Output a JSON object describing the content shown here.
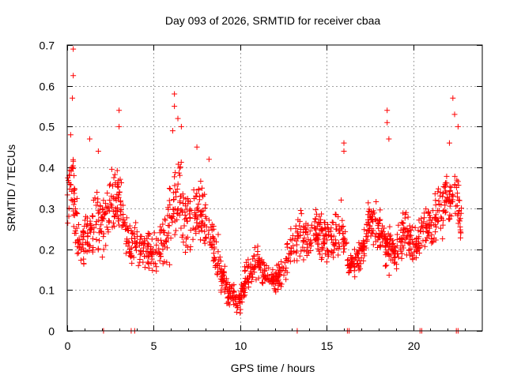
{
  "chart_data": {
    "type": "scatter",
    "title": "Day 093 of 2026, SRMTID for receiver cbaa",
    "xlabel": "GPS time / hours",
    "ylabel": "SRMTID / TECUs",
    "xlim": [
      0,
      24
    ],
    "ylim": [
      0,
      0.7
    ],
    "grid": true,
    "marker": "+",
    "colors": {
      "series": "#ff0000",
      "grid": "#a0a0a0",
      "axis": "#000000"
    },
    "x_ticks": [
      {
        "value": 0,
        "label": "0"
      },
      {
        "value": 5,
        "label": "5"
      },
      {
        "value": 10,
        "label": "10"
      },
      {
        "value": 15,
        "label": "15"
      },
      {
        "value": 20,
        "label": "20"
      }
    ],
    "y_ticks": [
      {
        "value": 0,
        "label": "0"
      },
      {
        "value": 0.1,
        "label": "0.1"
      },
      {
        "value": 0.2,
        "label": "0.2"
      },
      {
        "value": 0.3,
        "label": "0.3"
      },
      {
        "value": 0.4,
        "label": "0.4"
      },
      {
        "value": 0.5,
        "label": "0.5"
      },
      {
        "value": 0.6,
        "label": "0.6"
      },
      {
        "value": 0.7,
        "label": "0.7"
      }
    ],
    "trend_hours": [
      0,
      0.25,
      0.5,
      0.75,
      1,
      1.5,
      2,
      2.5,
      3,
      3.5,
      4,
      4.5,
      5,
      5.5,
      6,
      6.5,
      7,
      7.5,
      8,
      8.5,
      9,
      9.5,
      10,
      10.5,
      11,
      11.5,
      12,
      12.5,
      13,
      13.5,
      14,
      14.5,
      15,
      15.5,
      16,
      16.3,
      16.5,
      17,
      17.5,
      18,
      18.5,
      19,
      19.5,
      20,
      20.5,
      21,
      21.5,
      22,
      22.5,
      22.8
    ],
    "trend_srmtid": [
      0.33,
      0.37,
      0.27,
      0.2,
      0.22,
      0.27,
      0.26,
      0.3,
      0.33,
      0.22,
      0.21,
      0.2,
      0.19,
      0.22,
      0.28,
      0.32,
      0.27,
      0.3,
      0.27,
      0.2,
      0.13,
      0.08,
      0.075,
      0.15,
      0.17,
      0.13,
      0.12,
      0.15,
      0.2,
      0.24,
      0.22,
      0.24,
      0.22,
      0.24,
      0.25,
      0.15,
      0.17,
      0.18,
      0.27,
      0.26,
      0.2,
      0.19,
      0.25,
      0.2,
      0.24,
      0.26,
      0.3,
      0.33,
      0.33,
      0.25
    ],
    "spread": [
      0.1,
      0.14,
      0.11,
      0.09,
      0.1,
      0.12,
      0.11,
      0.11,
      0.11,
      0.09,
      0.08,
      0.07,
      0.07,
      0.1,
      0.14,
      0.15,
      0.13,
      0.11,
      0.11,
      0.09,
      0.06,
      0.04,
      0.04,
      0.06,
      0.06,
      0.05,
      0.05,
      0.06,
      0.07,
      0.08,
      0.07,
      0.08,
      0.07,
      0.08,
      0.09,
      0.04,
      0.05,
      0.06,
      0.08,
      0.08,
      0.07,
      0.07,
      0.08,
      0.07,
      0.07,
      0.08,
      0.09,
      0.11,
      0.1,
      0.08
    ],
    "outlier_points": [
      {
        "x": 0.35,
        "y": 0.69
      },
      {
        "x": 0.35,
        "y": 0.625
      },
      {
        "x": 0.3,
        "y": 0.57
      },
      {
        "x": 0.2,
        "y": 0.48
      },
      {
        "x": 1.3,
        "y": 0.47
      },
      {
        "x": 1.8,
        "y": 0.44
      },
      {
        "x": 3.0,
        "y": 0.54
      },
      {
        "x": 3.0,
        "y": 0.5
      },
      {
        "x": 6.2,
        "y": 0.58
      },
      {
        "x": 6.2,
        "y": 0.55
      },
      {
        "x": 6.4,
        "y": 0.52
      },
      {
        "x": 6.6,
        "y": 0.5
      },
      {
        "x": 6.1,
        "y": 0.49
      },
      {
        "x": 16.0,
        "y": 0.46
      },
      {
        "x": 16.0,
        "y": 0.44
      },
      {
        "x": 18.5,
        "y": 0.54
      },
      {
        "x": 18.5,
        "y": 0.51
      },
      {
        "x": 18.6,
        "y": 0.47
      },
      {
        "x": 22.3,
        "y": 0.57
      },
      {
        "x": 22.4,
        "y": 0.53
      },
      {
        "x": 22.6,
        "y": 0.5
      },
      {
        "x": 22.1,
        "y": 0.46
      },
      {
        "x": 7.5,
        "y": 0.45
      },
      {
        "x": 8.2,
        "y": 0.42
      }
    ],
    "zero_points": [
      2.1,
      3.7,
      3.9,
      13.3,
      16.2,
      16.3,
      20.4,
      20.5,
      22.5,
      22.6
    ]
  }
}
